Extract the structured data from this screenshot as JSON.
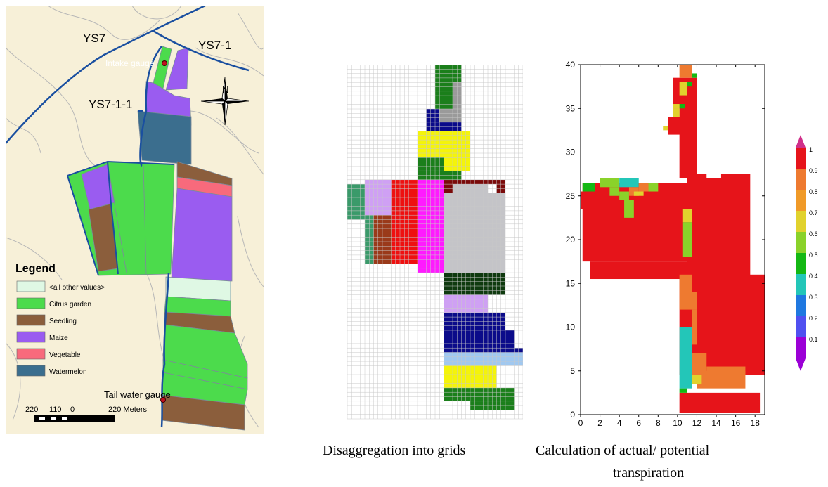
{
  "map": {
    "canal_labels": [
      "YS7",
      "YS7-1",
      "YS7-1-1"
    ],
    "intake_label": "Intake gauge",
    "tail_label": "Tail water gauge",
    "north_label": "N",
    "legend": {
      "title": "Legend",
      "items": [
        {
          "label": "<all other values>",
          "color": "#dff8e4"
        },
        {
          "label": "Citrus garden",
          "color": "#4cdb4c"
        },
        {
          "label": "Seedling",
          "color": "#8b5e3c"
        },
        {
          "label": "Maize",
          "color": "#9a5cf0"
        },
        {
          "label": "Vegetable",
          "color": "#f86a7c"
        },
        {
          "label": "Watermelon",
          "color": "#3b6e8e"
        }
      ]
    },
    "scale": {
      "ticks": [
        "220",
        "110",
        "0",
        "220 Meters"
      ]
    }
  },
  "captions": {
    "grid": "Disaggregation into grids",
    "heat_line1": "Calculation of actual/ potential",
    "heat_line2": "transpiration"
  },
  "chart_data": {
    "type": "heatmap",
    "xlabel": "",
    "ylabel": "",
    "xlim": [
      0,
      19
    ],
    "ylim": [
      0,
      40
    ],
    "xticks": [
      "0",
      "2",
      "4",
      "6",
      "8",
      "10",
      "12",
      "14",
      "16",
      "18"
    ],
    "yticks": [
      "0",
      "5",
      "10",
      "15",
      "20",
      "25",
      "30",
      "35",
      "40"
    ],
    "colorbar": {
      "ticks": [
        "0.1",
        "0.2",
        "0.3",
        "0.4",
        "0.5",
        "0.6",
        "0.7",
        "0.8",
        "0.9",
        "1"
      ],
      "colors": [
        "#9b00d6",
        "#5050f0",
        "#1f78e0",
        "#23c6b8",
        "#14b814",
        "#8ad22a",
        "#e1d22d",
        "#f09a28",
        "#ee7a30",
        "#e6141a"
      ]
    }
  }
}
